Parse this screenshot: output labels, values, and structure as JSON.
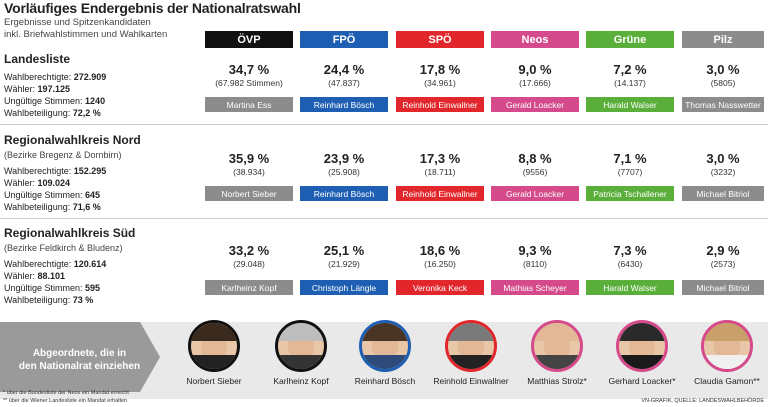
{
  "title": "Vorläufiges Endergebnis der Nationalratswahl",
  "subtitle1": "Ergebnisse und Spitzenkandidaten",
  "subtitle2": "inkl. Briefwahlstimmen und Wahlkarten",
  "colors": {
    "oevp": "#111111",
    "fpoe": "#1f5fb3",
    "spoe": "#e1262c",
    "neos": "#d44a8a",
    "gruene": "#5aae3a",
    "pilz": "#8c8c8c"
  },
  "parties": [
    "ÖVP",
    "FPÖ",
    "SPÖ",
    "Neos",
    "Grüne",
    "Pilz"
  ],
  "sections": [
    {
      "title": "Landesliste",
      "subtitle": "",
      "stats": {
        "wahlberechtigte_label": "Wahlberechtigte: ",
        "wahlberechtigte": "272.909",
        "waehler_label": "Wähler: ",
        "waehler": "197.125",
        "ungueltig_label": "Ungültige Stimmen: ",
        "ungueltig": "1240",
        "beteiligung_label": "Wahlbeteiligung: ",
        "beteiligung": "72,2 %"
      },
      "results": [
        {
          "pct": "34,7 %",
          "votes": "(67.982 Stimmen)",
          "candidate": "Martina Ess"
        },
        {
          "pct": "24,4 %",
          "votes": "(47.837)",
          "candidate": "Reinhard Bösch"
        },
        {
          "pct": "17,8 %",
          "votes": "(34.961)",
          "candidate": "Reinhold Einwallner"
        },
        {
          "pct": "9,0 %",
          "votes": "(17.666)",
          "candidate": "Gerald Loacker"
        },
        {
          "pct": "7,2 %",
          "votes": "(14.137)",
          "candidate": "Harald Walser"
        },
        {
          "pct": "3,0 %",
          "votes": "(5805)",
          "candidate": "Thomas Nasswetter"
        }
      ]
    },
    {
      "title": "Regionalwahlkreis Nord",
      "subtitle": "(Bezirke Bregenz & Dornbirn)",
      "stats": {
        "wahlberechtigte_label": "Wahlberechtigte: ",
        "wahlberechtigte": "152.295",
        "waehler_label": "Wähler: ",
        "waehler": "109.024",
        "ungueltig_label": "Ungültige Stimmen: ",
        "ungueltig": "645",
        "beteiligung_label": "Wahlbeteiligung: ",
        "beteiligung": "71,6 %"
      },
      "results": [
        {
          "pct": "35,9 %",
          "votes": "(38.934)",
          "candidate": "Norbert Sieber"
        },
        {
          "pct": "23,9 %",
          "votes": "(25.908)",
          "candidate": "Reinhard Bösch"
        },
        {
          "pct": "17,3 %",
          "votes": "(18.711)",
          "candidate": "Reinhold Einwallner"
        },
        {
          "pct": "8,8 %",
          "votes": "(9556)",
          "candidate": "Gerald Loacker"
        },
        {
          "pct": "7,1 %",
          "votes": "(7707)",
          "candidate": "Patricia Tschallener"
        },
        {
          "pct": "3,0 %",
          "votes": "(3232)",
          "candidate": "Michael Bitriol"
        }
      ]
    },
    {
      "title": "Regionalwahlkreis Süd",
      "subtitle": "(Bezirke Feldkirch & Bludenz)",
      "stats": {
        "wahlberechtigte_label": "Wahlberechtigte: ",
        "wahlberechtigte": "120.614",
        "waehler_label": "Wähler: ",
        "waehler": "88.101",
        "ungueltig_label": "Ungültige Stimmen: ",
        "ungueltig": "595",
        "beteiligung_label": "Wahlbeteiligung: ",
        "beteiligung": "73 %"
      },
      "results": [
        {
          "pct": "33,2 %",
          "votes": "(29.048)",
          "candidate": "Karlheinz Kopf"
        },
        {
          "pct": "25,1 %",
          "votes": "(21.929)",
          "candidate": "Christoph Längle"
        },
        {
          "pct": "18,6 %",
          "votes": "(16.250)",
          "candidate": "Veronika Keck"
        },
        {
          "pct": "9,3 %",
          "votes": "(8110)",
          "candidate": "Mathias Scheyer"
        },
        {
          "pct": "7,3 %",
          "votes": "(6430)",
          "candidate": "Harald Walser"
        },
        {
          "pct": "2,9 %",
          "votes": "(2573)",
          "candidate": "Michael Bitriol"
        }
      ]
    }
  ],
  "abgeordnete": {
    "heading_line1": "Abgeordnete, die in",
    "heading_line2": "den Nationalrat einziehen",
    "people": [
      {
        "name": "Norbert Sieber",
        "party": "oevp"
      },
      {
        "name": "Karlheinz Kopf",
        "party": "oevp"
      },
      {
        "name": "Reinhard Bösch",
        "party": "fpoe"
      },
      {
        "name": "Reinhold Einwallner",
        "party": "spoe"
      },
      {
        "name": "Matthias Strolz*",
        "party": "neos"
      },
      {
        "name": "Gerhard Loacker*",
        "party": "neos"
      },
      {
        "name": "Claudia Gamon**",
        "party": "neos"
      }
    ]
  },
  "footnote1": "* über die Bundesliste der Neos ein Mandat erreicht",
  "footnote2": "** über die Wiener Landesliste ein Mandat erhalten",
  "credit": "VN-GRAFIK, QUELLE: LANDESWAHLBEHÖRDE"
}
